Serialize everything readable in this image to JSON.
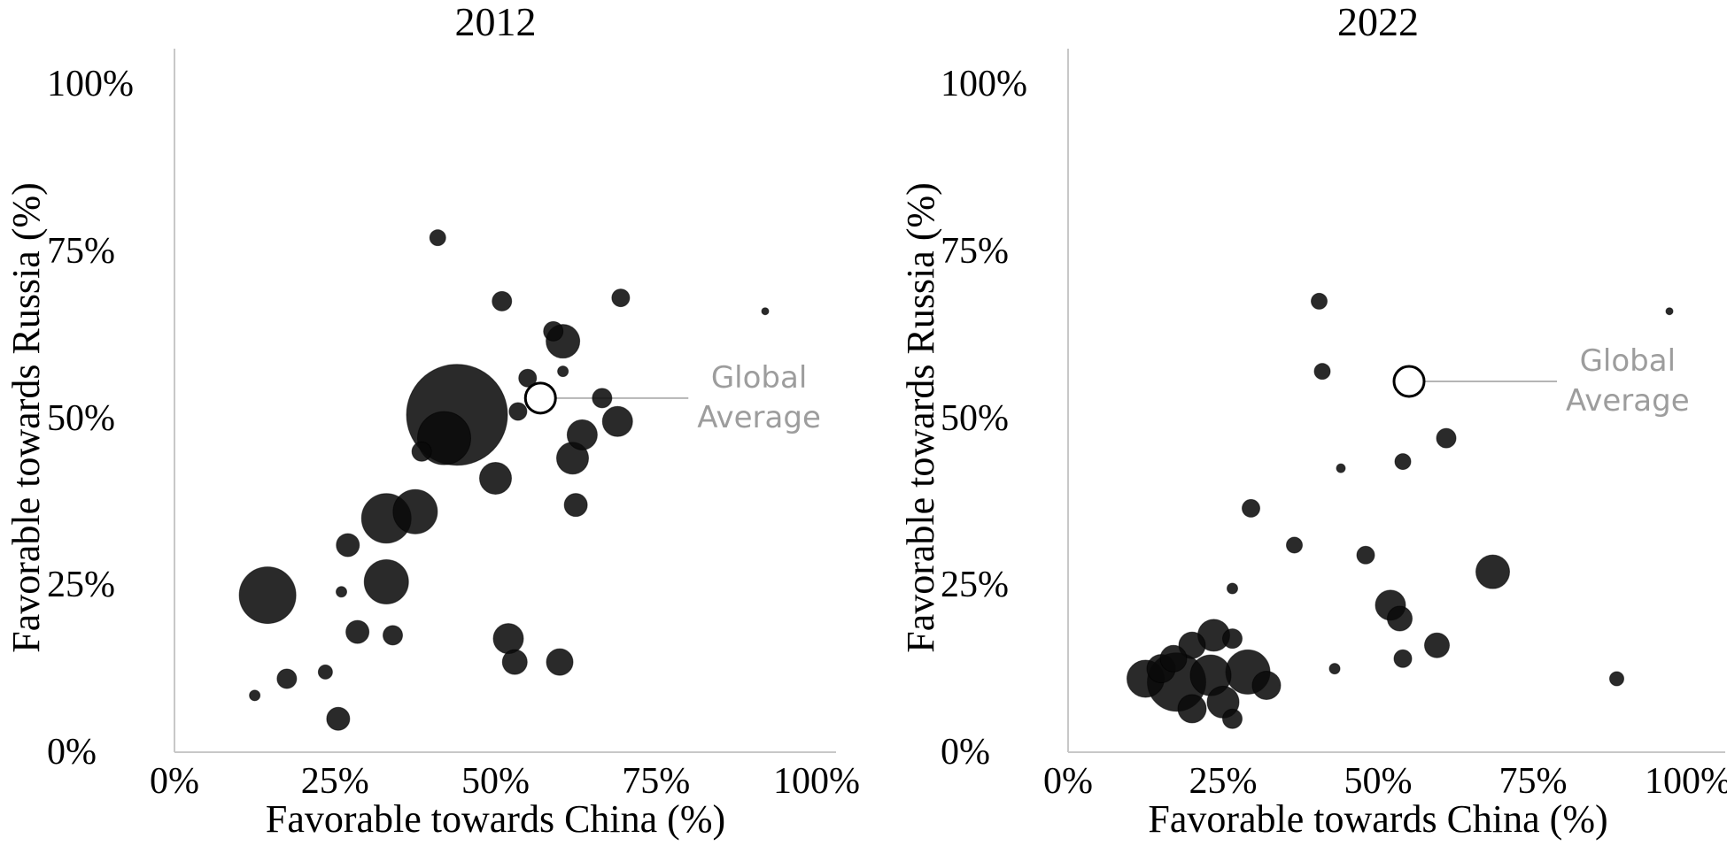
{
  "figure": {
    "background": "#ffffff",
    "axis_color": "#c8c8c8",
    "text_color": "#000000"
  },
  "chart_data": [
    {
      "type": "scatter",
      "title": "2012",
      "xlabel": "Favorable towards China (%)",
      "ylabel": "Favorable towards Russia (%)",
      "xlim": [
        0,
        100
      ],
      "ylim": [
        0,
        100
      ],
      "x_ticks": [
        "0%",
        "25%",
        "50%",
        "75%",
        "100%"
      ],
      "x_tick_values": [
        0,
        25,
        50,
        75,
        100
      ],
      "y_ticks": [
        "0%",
        "25%",
        "50%",
        "75%",
        "100%"
      ],
      "y_tick_values": [
        0,
        25,
        50,
        75,
        100
      ],
      "grid": false,
      "legend": "none",
      "bubble_color": "#0a0a0a",
      "bubble_opacity": 0.87,
      "points": [
        {
          "x": 41,
          "y": 77,
          "r": 9
        },
        {
          "x": 51,
          "y": 67.5,
          "r": 11
        },
        {
          "x": 69.5,
          "y": 68,
          "r": 10
        },
        {
          "x": 92,
          "y": 66,
          "r": 4
        },
        {
          "x": 59,
          "y": 63,
          "r": 11
        },
        {
          "x": 60.5,
          "y": 61.5,
          "r": 19
        },
        {
          "x": 60.5,
          "y": 57,
          "r": 6
        },
        {
          "x": 55,
          "y": 56,
          "r": 10
        },
        {
          "x": 53.5,
          "y": 51,
          "r": 10
        },
        {
          "x": 66.6,
          "y": 53,
          "r": 11
        },
        {
          "x": 69,
          "y": 49.5,
          "r": 17
        },
        {
          "x": 63.5,
          "y": 47.5,
          "r": 17
        },
        {
          "x": 62,
          "y": 44,
          "r": 18
        },
        {
          "x": 44,
          "y": 50.5,
          "r": 57
        },
        {
          "x": 42,
          "y": 47,
          "r": 30
        },
        {
          "x": 38.5,
          "y": 45,
          "r": 11
        },
        {
          "x": 50,
          "y": 41,
          "r": 18
        },
        {
          "x": 62.5,
          "y": 37,
          "r": 13
        },
        {
          "x": 37.5,
          "y": 36,
          "r": 25
        },
        {
          "x": 33,
          "y": 35,
          "r": 28
        },
        {
          "x": 27,
          "y": 31,
          "r": 13
        },
        {
          "x": 33,
          "y": 25.5,
          "r": 25
        },
        {
          "x": 14.5,
          "y": 23.5,
          "r": 32
        },
        {
          "x": 26,
          "y": 24,
          "r": 6
        },
        {
          "x": 28.5,
          "y": 18,
          "r": 13
        },
        {
          "x": 34,
          "y": 17.5,
          "r": 11
        },
        {
          "x": 52,
          "y": 17,
          "r": 17
        },
        {
          "x": 53,
          "y": 13.5,
          "r": 14
        },
        {
          "x": 60,
          "y": 13.5,
          "r": 15
        },
        {
          "x": 23.5,
          "y": 12,
          "r": 8
        },
        {
          "x": 17.5,
          "y": 11,
          "r": 11
        },
        {
          "x": 12.5,
          "y": 8.5,
          "r": 6
        },
        {
          "x": 25.5,
          "y": 5,
          "r": 13
        }
      ],
      "global_average": {
        "x": 57,
        "y": 53,
        "r": 17,
        "label_lines": [
          "Global",
          "Average"
        ],
        "label_color": "#9d9d9d",
        "line_color": "#b5b5b5"
      }
    },
    {
      "type": "scatter",
      "title": "2022",
      "xlabel": "Favorable towards China (%)",
      "ylabel": "Favorable towards Russia (%)",
      "xlim": [
        0,
        100
      ],
      "ylim": [
        0,
        100
      ],
      "x_ticks": [
        "0%",
        "25%",
        "50%",
        "75%",
        "100%"
      ],
      "x_tick_values": [
        0,
        25,
        50,
        75,
        100
      ],
      "y_ticks": [
        "0%",
        "25%",
        "50%",
        "75%",
        "100%"
      ],
      "y_tick_values": [
        0,
        25,
        50,
        75,
        100
      ],
      "grid": false,
      "legend": "none",
      "bubble_color": "#0a0a0a",
      "bubble_opacity": 0.87,
      "points": [
        {
          "x": 40.5,
          "y": 67.5,
          "r": 9
        },
        {
          "x": 97,
          "y": 66,
          "r": 4
        },
        {
          "x": 41,
          "y": 57,
          "r": 9
        },
        {
          "x": 61,
          "y": 47,
          "r": 11
        },
        {
          "x": 44,
          "y": 42.5,
          "r": 5
        },
        {
          "x": 54,
          "y": 43.5,
          "r": 9
        },
        {
          "x": 29.5,
          "y": 36.5,
          "r": 10
        },
        {
          "x": 36.5,
          "y": 31,
          "r": 9
        },
        {
          "x": 48,
          "y": 29.5,
          "r": 10
        },
        {
          "x": 68.5,
          "y": 27,
          "r": 19
        },
        {
          "x": 26.5,
          "y": 24.5,
          "r": 6
        },
        {
          "x": 52,
          "y": 22,
          "r": 17
        },
        {
          "x": 53.5,
          "y": 20,
          "r": 14
        },
        {
          "x": 59.5,
          "y": 16,
          "r": 14
        },
        {
          "x": 54,
          "y": 14,
          "r": 10
        },
        {
          "x": 43,
          "y": 12.5,
          "r": 6
        },
        {
          "x": 88.5,
          "y": 11,
          "r": 8
        },
        {
          "x": 23.5,
          "y": 17.5,
          "r": 18
        },
        {
          "x": 26.5,
          "y": 17,
          "r": 11
        },
        {
          "x": 20,
          "y": 16,
          "r": 15
        },
        {
          "x": 17,
          "y": 14,
          "r": 15
        },
        {
          "x": 15,
          "y": 12.5,
          "r": 16
        },
        {
          "x": 12.5,
          "y": 11,
          "r": 21
        },
        {
          "x": 17.5,
          "y": 10.5,
          "r": 33
        },
        {
          "x": 23,
          "y": 11.5,
          "r": 23
        },
        {
          "x": 29,
          "y": 12,
          "r": 25
        },
        {
          "x": 32,
          "y": 10,
          "r": 16
        },
        {
          "x": 25,
          "y": 7.5,
          "r": 18
        },
        {
          "x": 20,
          "y": 6.5,
          "r": 16
        },
        {
          "x": 26.5,
          "y": 5,
          "r": 11
        }
      ],
      "global_average": {
        "x": 55,
        "y": 55.5,
        "r": 17,
        "label_lines": [
          "Global",
          "Average"
        ],
        "label_color": "#9d9d9d",
        "line_color": "#b5b5b5"
      }
    }
  ]
}
